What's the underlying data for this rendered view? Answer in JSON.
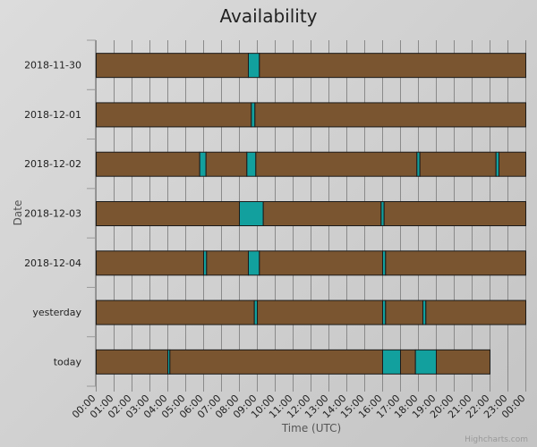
{
  "chart_data": {
    "type": "bar",
    "subtype": "timeline-gantt",
    "title": "Availability",
    "xlabel": "Time (UTC)",
    "ylabel": "Date",
    "xlim": [
      "00:00",
      "24:00"
    ],
    "x_ticks": [
      "00:00",
      "01:00",
      "02:00",
      "03:00",
      "04:00",
      "05:00",
      "06:00",
      "07:00",
      "08:00",
      "09:00",
      "10:00",
      "11:00",
      "12:00",
      "13:00",
      "14:00",
      "15:00",
      "16:00",
      "17:00",
      "18:00",
      "19:00",
      "20:00",
      "21:00",
      "22:00",
      "23:00",
      "00:00"
    ],
    "grid": true,
    "legend": "none",
    "categories": [
      "2018-11-30",
      "2018-12-01",
      "2018-12-02",
      "2018-12-03",
      "2018-12-04",
      "yesterday",
      "today"
    ],
    "state_colors": {
      "brown": "#7a5530",
      "teal": "#12a09e"
    },
    "rows": [
      {
        "date": "2018-11-30",
        "segments": [
          {
            "start": "00:00",
            "end": "08:30",
            "state": "brown"
          },
          {
            "start": "08:30",
            "end": "09:07",
            "state": "teal"
          },
          {
            "start": "09:07",
            "end": "24:00",
            "state": "brown"
          }
        ]
      },
      {
        "date": "2018-12-01",
        "segments": [
          {
            "start": "00:00",
            "end": "08:40",
            "state": "brown"
          },
          {
            "start": "08:40",
            "end": "08:52",
            "state": "teal"
          },
          {
            "start": "08:52",
            "end": "24:00",
            "state": "brown"
          }
        ]
      },
      {
        "date": "2018-12-02",
        "segments": [
          {
            "start": "00:00",
            "end": "05:47",
            "state": "brown"
          },
          {
            "start": "05:47",
            "end": "06:08",
            "state": "teal"
          },
          {
            "start": "06:08",
            "end": "08:25",
            "state": "brown"
          },
          {
            "start": "08:25",
            "end": "08:55",
            "state": "teal"
          },
          {
            "start": "08:55",
            "end": "17:55",
            "state": "brown"
          },
          {
            "start": "17:55",
            "end": "18:05",
            "state": "teal"
          },
          {
            "start": "18:05",
            "end": "22:20",
            "state": "brown"
          },
          {
            "start": "22:20",
            "end": "22:30",
            "state": "teal"
          },
          {
            "start": "22:30",
            "end": "24:00",
            "state": "brown"
          }
        ]
      },
      {
        "date": "2018-12-03",
        "segments": [
          {
            "start": "00:00",
            "end": "08:00",
            "state": "brown"
          },
          {
            "start": "08:00",
            "end": "09:20",
            "state": "teal"
          },
          {
            "start": "09:20",
            "end": "15:55",
            "state": "brown"
          },
          {
            "start": "15:55",
            "end": "16:05",
            "state": "teal"
          },
          {
            "start": "16:05",
            "end": "24:00",
            "state": "brown"
          }
        ]
      },
      {
        "date": "2018-12-04",
        "segments": [
          {
            "start": "00:00",
            "end": "06:00",
            "state": "brown"
          },
          {
            "start": "06:00",
            "end": "06:10",
            "state": "teal"
          },
          {
            "start": "06:10",
            "end": "08:30",
            "state": "brown"
          },
          {
            "start": "08:30",
            "end": "09:07",
            "state": "teal"
          },
          {
            "start": "09:07",
            "end": "16:00",
            "state": "brown"
          },
          {
            "start": "16:00",
            "end": "16:10",
            "state": "teal"
          },
          {
            "start": "16:10",
            "end": "24:00",
            "state": "brown"
          }
        ]
      },
      {
        "date": "yesterday",
        "segments": [
          {
            "start": "00:00",
            "end": "08:50",
            "state": "brown"
          },
          {
            "start": "08:50",
            "end": "09:00",
            "state": "teal"
          },
          {
            "start": "09:00",
            "end": "16:00",
            "state": "brown"
          },
          {
            "start": "16:00",
            "end": "16:10",
            "state": "teal"
          },
          {
            "start": "16:10",
            "end": "18:15",
            "state": "brown"
          },
          {
            "start": "18:15",
            "end": "18:25",
            "state": "teal"
          },
          {
            "start": "18:25",
            "end": "24:00",
            "state": "brown"
          }
        ]
      },
      {
        "date": "today",
        "segments": [
          {
            "start": "00:00",
            "end": "04:00",
            "state": "brown"
          },
          {
            "start": "04:00",
            "end": "04:07",
            "state": "teal"
          },
          {
            "start": "04:07",
            "end": "16:00",
            "state": "brown"
          },
          {
            "start": "16:00",
            "end": "17:00",
            "state": "teal"
          },
          {
            "start": "17:00",
            "end": "17:50",
            "state": "brown"
          },
          {
            "start": "17:50",
            "end": "19:00",
            "state": "teal"
          },
          {
            "start": "19:00",
            "end": "22:00",
            "state": "brown"
          }
        ]
      }
    ]
  },
  "credits": "Highcharts.com"
}
